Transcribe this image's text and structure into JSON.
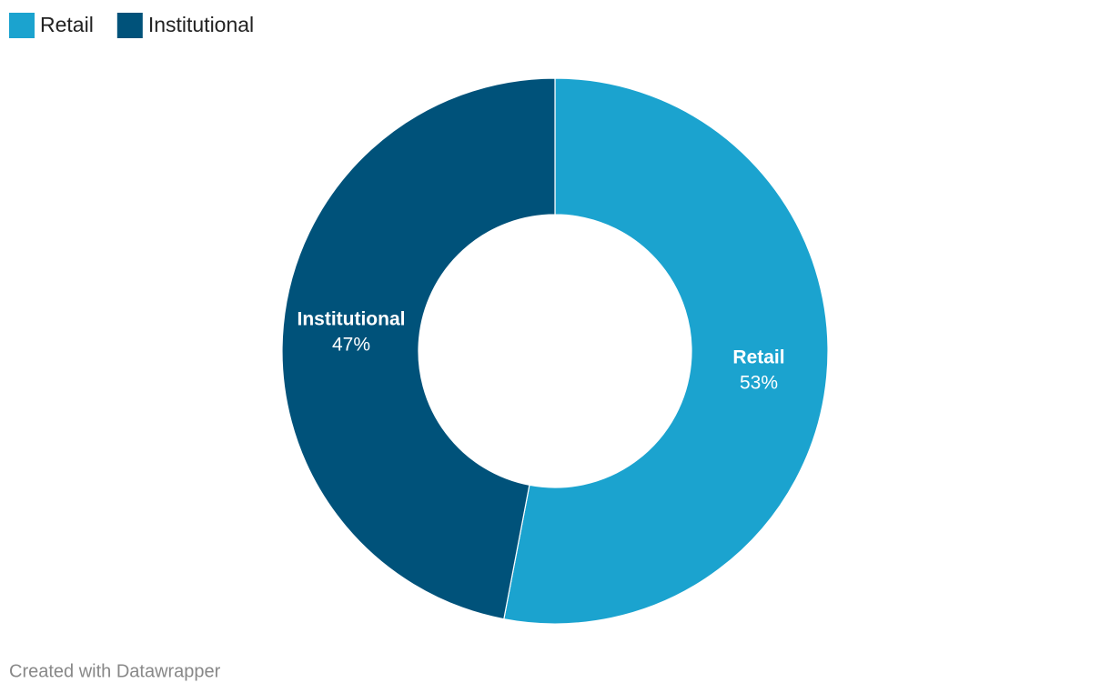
{
  "chart_data": {
    "type": "donut",
    "categories": [
      "Retail",
      "Institutional"
    ],
    "values": [
      53,
      47
    ],
    "value_labels": [
      "53%",
      "47%"
    ],
    "colors": [
      "#1ba3cf",
      "#00527a"
    ],
    "legend": "top-left",
    "credit": "Created with Datawrapper"
  }
}
